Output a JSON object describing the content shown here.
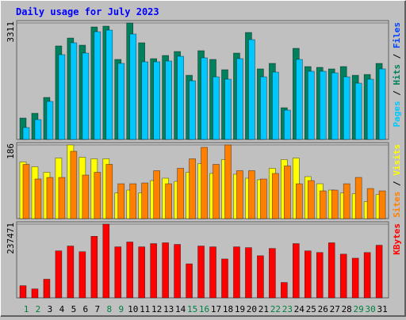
{
  "chart_data": {
    "type": "bar",
    "title": "Daily usage for July 2023",
    "categories": [
      "1",
      "2",
      "3",
      "4",
      "5",
      "6",
      "7",
      "8",
      "9",
      "10",
      "11",
      "12",
      "13",
      "14",
      "15",
      "16",
      "17",
      "18",
      "19",
      "20",
      "21",
      "22",
      "23",
      "24",
      "25",
      "26",
      "27",
      "28",
      "29",
      "30",
      "31"
    ],
    "category_colors": [
      "#008040",
      "#008040",
      "#000000",
      "#000000",
      "#000000",
      "#000000",
      "#000000",
      "#008040",
      "#008040",
      "#000000",
      "#000000",
      "#000000",
      "#000000",
      "#000000",
      "#008040",
      "#008040",
      "#000000",
      "#000000",
      "#000000",
      "#000000",
      "#000000",
      "#008040",
      "#008040",
      "#000000",
      "#000000",
      "#000000",
      "#000000",
      "#000000",
      "#008040",
      "#008040",
      "#000000"
    ],
    "legend_separator": " / ",
    "panels": [
      {
        "ylim": [
          0,
          3311
        ],
        "yticks": [
          3311
        ],
        "legend_extra": [
          {
            "name": "Files",
            "color": "#0040ff",
            "after": 0
          }
        ],
        "series": [
          {
            "name": "Hits",
            "color": "#00805c",
            "values": [
              608,
              743,
              1194,
              2658,
              2883,
              2680,
              3198,
              3221,
              2275,
              3311,
              2748,
              2297,
              2387,
              2500,
              1824,
              2523,
              2275,
              1982,
              2455,
              3041,
              2005,
              2162,
              901,
              2590,
              2072,
              2050,
              2005,
              2072,
              1824,
              1847,
              2162
            ]
          },
          {
            "name": "Pages",
            "color": "#00c8ff",
            "values": [
              338,
              563,
              1081,
              2410,
              2748,
              2455,
              3063,
              3108,
              2162,
              2996,
              2207,
              2207,
              2230,
              2365,
              1667,
              2320,
              1779,
              1712,
              2297,
              2838,
              1779,
              1914,
              833,
              2275,
              1937,
              1937,
              1892,
              1779,
              1599,
              1712,
              2005
            ]
          }
        ]
      },
      {
        "ylim": [
          0,
          186
        ],
        "yticks": [
          186
        ],
        "series": [
          {
            "name": "Visits",
            "color": "#ffff00",
            "values": [
              143,
              131,
              117,
              153,
              186,
              155,
              151,
              151,
              65,
              72,
              65,
              96,
              102,
              94,
              117,
              139,
              114,
              149,
              112,
              102,
              98,
              127,
              149,
              153,
              106,
              88,
              72,
              65,
              63,
              43,
              61
            ]
          },
          {
            "name": "Sites",
            "color": "#ff8000",
            "values": [
              137,
              100,
              104,
              104,
              170,
              110,
              117,
              137,
              88,
              88,
              90,
              121,
              88,
              127,
              151,
              180,
              137,
              186,
              121,
              121,
              100,
              114,
              133,
              88,
              96,
              70,
              72,
              88,
              104,
              76,
              70
            ]
          }
        ]
      },
      {
        "ylim": [
          0,
          237471
        ],
        "yticks": [
          237471
        ],
        "series": [
          {
            "name": "KBytes",
            "color": "#ff0000",
            "values": [
              39144,
              28705,
              60020,
              151355,
              167012,
              148745,
              198327,
              237471,
              164403,
              180060,
              164403,
              174841,
              177450,
              172231,
              109602,
              167012,
              164403,
              125259,
              164403,
              161793,
              135697,
              159184,
              49582,
              174841,
              151355,
              146136,
              177450,
              140917,
              127869,
              146136,
              169622
            ]
          }
        ]
      }
    ]
  }
}
